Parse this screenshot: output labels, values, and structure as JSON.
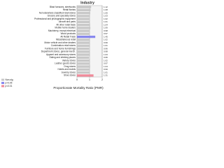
{
  "chart_data": {
    "type": "bar",
    "orientation": "horizontal",
    "title": "Industry",
    "x_label": "Proportionate Mortality Ratio (PMR)",
    "categories": [
      "Blast furnaces, steelworks",
      "Retail florists",
      "Not-elsewhere-classified retail stores",
      "Grocery and specialty stores",
      "Professional and photographic equipment",
      "Aircraft and parts",
      "All other retail trade",
      "Mobile home dealers",
      "Machinery, except electrical",
      "Wood products",
      "All Retail Trade",
      "Miscellaneous retail",
      "Motor vehicle and other dealers",
      "Combination retail stores",
      "Furniture and home furnishings",
      "Department stores, general merch.",
      "Apparel and accessory stores",
      "Eating and drinking places",
      "Variety stores",
      "Leather goods stores",
      "Drug stores",
      "Hotels and motels",
      "Jewelry stores",
      "Shoe stores"
    ],
    "values": [
      1.12,
      1.08,
      1.05,
      1.03,
      1.02,
      1.01,
      1.04,
      1.06,
      0.98,
      0.97,
      1.45,
      1.02,
      0.99,
      1.01,
      0.96,
      0.98,
      1.03,
      0.95,
      1.02,
      0.97,
      1.04,
      0.99,
      1.01,
      1.31
    ],
    "significance": [
      0,
      0,
      0,
      0,
      0,
      0,
      0,
      0,
      0,
      0,
      1,
      0,
      0,
      0,
      0,
      0,
      0,
      0,
      0,
      0,
      0,
      0,
      0,
      2
    ],
    "legend": [
      {
        "label": "Non-sig",
        "color": "#c8c8c8"
      },
      {
        "label": "p<0.05",
        "color": "#8888ee"
      },
      {
        "label": "p<0.01",
        "color": "#f08a9a"
      }
    ],
    "xlim": [
      0,
      2
    ],
    "xticks": [
      0,
      1,
      2
    ]
  }
}
